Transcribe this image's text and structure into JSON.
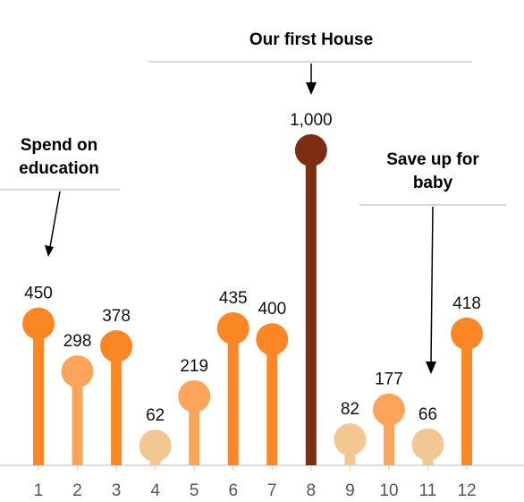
{
  "chart_data": {
    "type": "lollipop",
    "categories": [
      "1",
      "2",
      "3",
      "4",
      "5",
      "6",
      "7",
      "8",
      "9",
      "10",
      "11",
      "12"
    ],
    "values": [
      450,
      298,
      378,
      62,
      219,
      435,
      400,
      1000,
      82,
      177,
      66,
      418
    ],
    "value_labels": [
      "450",
      "298",
      "378",
      "62",
      "219",
      "435",
      "400",
      "1,000",
      "82",
      "177",
      "66",
      "418"
    ],
    "colors": [
      "#fb8724",
      "#fca55a",
      "#fb8724",
      "#f2c792",
      "#fca55a",
      "#fb8724",
      "#fb8724",
      "#7b2f10",
      "#f2c792",
      "#fca55a",
      "#f2c792",
      "#fb8724"
    ],
    "ylim": [
      0,
      1000
    ],
    "title": "",
    "xlabel": "",
    "ylabel": "",
    "annotations": [
      {
        "lines": [
          "Spend on",
          "education"
        ],
        "target": "1"
      },
      {
        "lines": [
          "Our first House"
        ],
        "target": "8"
      },
      {
        "lines": [
          "Save up for",
          "baby"
        ],
        "target": "11"
      }
    ]
  }
}
